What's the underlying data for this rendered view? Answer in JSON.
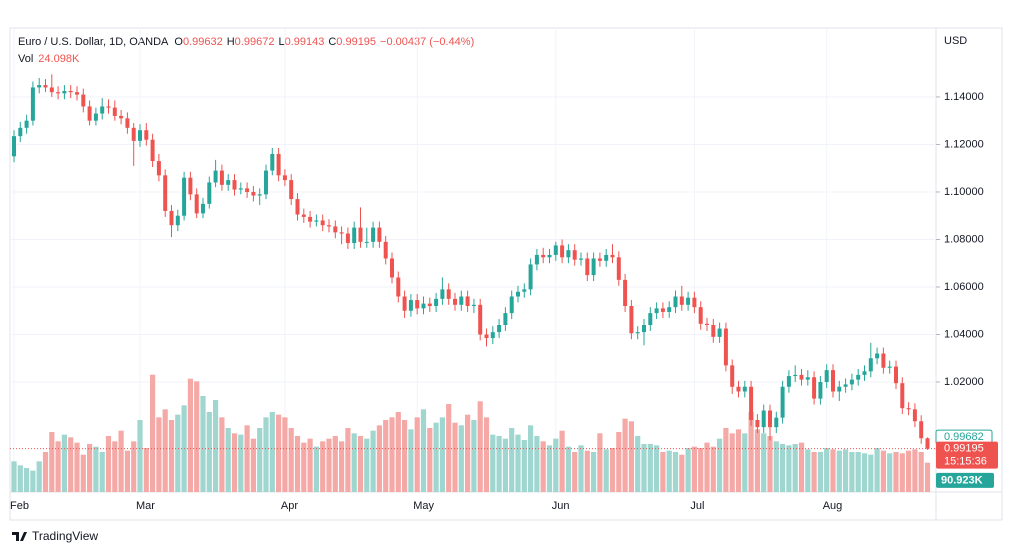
{
  "chart_data": {
    "type": "candlestick",
    "title": "Euro / U.S. Dollar, 1D, OANDA",
    "ohlc_header": [
      {
        "key": "O",
        "value": "0.99632"
      },
      {
        "key": "H",
        "value": "0.99672"
      },
      {
        "key": "L",
        "value": "0.99143"
      },
      {
        "key": "C",
        "value": "0.99195"
      }
    ],
    "change": "−0.00437 (−0.44%)",
    "volume_header": {
      "key": "Vol",
      "value": "24.098K"
    },
    "currency": "USD",
    "countdown": "15:15:36",
    "branding": "TradingView",
    "up_color": "#26a69a",
    "down_color": "#ef5350",
    "volume_up_color": "#9fd6cf",
    "volume_down_color": "#f5a9a7",
    "grid": true,
    "categories": [
      "Feb",
      null,
      null,
      null,
      null,
      null,
      null,
      null,
      null,
      null,
      null,
      null,
      null,
      null,
      null,
      null,
      null,
      null,
      null,
      null,
      "Mar",
      null,
      null,
      null,
      null,
      null,
      null,
      null,
      null,
      null,
      null,
      null,
      null,
      null,
      null,
      null,
      null,
      null,
      null,
      null,
      null,
      null,
      null,
      "Apr",
      null,
      null,
      null,
      null,
      null,
      null,
      null,
      null,
      null,
      null,
      null,
      null,
      null,
      null,
      null,
      null,
      null,
      null,
      null,
      null,
      "May",
      null,
      null,
      null,
      null,
      null,
      null,
      null,
      null,
      null,
      null,
      null,
      null,
      null,
      null,
      null,
      null,
      null,
      null,
      null,
      null,
      null,
      "Jun",
      null,
      null,
      null,
      null,
      null,
      null,
      null,
      null,
      null,
      null,
      null,
      null,
      null,
      null,
      null,
      null,
      null,
      null,
      null,
      null,
      null,
      "Jul",
      null,
      null,
      null,
      null,
      null,
      null,
      null,
      null,
      null,
      null,
      null,
      null,
      null,
      null,
      null,
      null,
      null,
      null,
      null,
      null,
      "Aug",
      null,
      null,
      null,
      null,
      null,
      null,
      null,
      null,
      null,
      null,
      null,
      null,
      null,
      null,
      null,
      null
    ],
    "open": [
      1.115,
      1.1235,
      1.127,
      1.13,
      1.144,
      1.145,
      1.144,
      1.142,
      1.1415,
      1.1425,
      1.142,
      1.141,
      1.136,
      1.13,
      1.133,
      1.136,
      1.1355,
      1.132,
      1.131,
      1.127,
      1.1215,
      1.126,
      1.122,
      1.113,
      1.107,
      1.092,
      1.086,
      1.09,
      1.106,
      1.099,
      1.091,
      1.095,
      1.104,
      1.109,
      1.103,
      1.105,
      1.101,
      1.1015,
      1.1,
      1.0985,
      1.099,
      1.109,
      1.116,
      1.107,
      1.105,
      1.097,
      1.0905,
      1.0895,
      1.0875,
      1.088,
      1.086,
      1.0855,
      1.083,
      1.0825,
      1.0785,
      1.085,
      1.079,
      1.079,
      1.085,
      1.079,
      1.072,
      1.064,
      1.056,
      1.05,
      1.0545,
      1.051,
      1.053,
      1.052,
      1.055,
      1.059,
      1.055,
      1.0525,
      1.056,
      1.052,
      1.0525,
      1.04,
      1.0385,
      1.041,
      1.044,
      1.049,
      1.056,
      1.058,
      1.059,
      1.0695,
      1.0735,
      1.0725,
      1.0735,
      1.0775,
      1.0725,
      1.0755,
      1.0715,
      1.072,
      1.065,
      1.072,
      1.071,
      1.0735,
      1.0725,
      1.063,
      1.052,
      1.0405,
      1.041,
      1.044,
      1.049,
      1.051,
      1.0495,
      1.0515,
      1.056,
      1.0525,
      1.0555,
      1.0515,
      1.0445,
      1.044,
      1.039,
      1.0425,
      1.027,
      1.018,
      1.016,
      1.018,
      1.004,
      1.001,
      1.008,
      1.001,
      1.005,
      1.018,
      1.0225,
      1.023,
      1.021,
      1.022,
      1.013,
      1.02,
      1.025,
      1.016,
      1.018,
      1.019,
      1.021,
      1.023,
      1.0245,
      1.03,
      1.032,
      1.026,
      1.0265,
      1.0195,
      1.009,
      1.0085,
      1.0035,
      0.99632
    ],
    "high": [
      1.126,
      1.1295,
      1.1325,
      1.1465,
      1.148,
      1.1475,
      1.1495,
      1.1445,
      1.145,
      1.145,
      1.1445,
      1.1435,
      1.1385,
      1.1355,
      1.1395,
      1.139,
      1.1385,
      1.1345,
      1.1335,
      1.129,
      1.1285,
      1.129,
      1.1245,
      1.116,
      1.1095,
      1.0945,
      1.0925,
      1.1085,
      1.1085,
      1.1015,
      1.0975,
      1.1065,
      1.1135,
      1.1115,
      1.1075,
      1.1075,
      1.104,
      1.104,
      1.1025,
      1.1015,
      1.1115,
      1.1185,
      1.1185,
      1.1095,
      1.1075,
      1.0995,
      1.093,
      1.092,
      1.0905,
      1.0905,
      1.0885,
      1.088,
      1.0855,
      1.085,
      1.0875,
      1.0935,
      1.085,
      1.0875,
      1.0875,
      1.0815,
      1.0745,
      1.0665,
      1.0585,
      1.057,
      1.057,
      1.056,
      1.0555,
      1.0575,
      1.064,
      1.0615,
      1.0575,
      1.0585,
      1.0585,
      1.055,
      1.055,
      1.0425,
      1.0435,
      1.0465,
      1.0515,
      1.0585,
      1.0605,
      1.0615,
      1.072,
      1.076,
      1.0765,
      1.076,
      1.079,
      1.08,
      1.078,
      1.078,
      1.0745,
      1.0745,
      1.0745,
      1.0745,
      1.076,
      1.078,
      1.075,
      1.0655,
      1.0545,
      1.0435,
      1.0465,
      1.0515,
      1.0535,
      1.0535,
      1.054,
      1.0585,
      1.0605,
      1.058,
      1.058,
      1.054,
      1.047,
      1.0465,
      1.045,
      1.045,
      1.0295,
      1.0205,
      1.0205,
      1.0205,
      1.0065,
      1.0105,
      1.0105,
      1.0075,
      1.0205,
      1.025,
      1.027,
      1.0255,
      1.025,
      1.0245,
      1.0225,
      1.0275,
      1.0275,
      1.0205,
      1.0215,
      1.0235,
      1.0255,
      1.027,
      1.0365,
      1.0345,
      1.0345,
      1.029,
      1.029,
      1.022,
      1.0115,
      1.011,
      1.006,
      0.99672
    ],
    "low": [
      1.1125,
      1.121,
      1.1245,
      1.128,
      1.1415,
      1.142,
      1.14,
      1.139,
      1.139,
      1.1395,
      1.1385,
      1.1335,
      1.128,
      1.128,
      1.1305,
      1.133,
      1.13,
      1.1285,
      1.1245,
      1.111,
      1.119,
      1.1195,
      1.1105,
      1.1045,
      1.0895,
      1.081,
      1.0835,
      1.088,
      1.0965,
      1.089,
      1.089,
      1.093,
      1.102,
      1.1005,
      1.1005,
      1.0985,
      1.099,
      1.0975,
      1.096,
      1.0945,
      1.097,
      1.107,
      1.1045,
      1.1025,
      1.0945,
      1.088,
      1.087,
      1.085,
      1.0855,
      1.0835,
      1.083,
      1.0805,
      1.078,
      1.076,
      1.076,
      1.0765,
      1.0765,
      1.0765,
      1.0765,
      1.0695,
      1.0615,
      1.0535,
      1.047,
      1.0475,
      1.0485,
      1.0485,
      1.0495,
      1.0495,
      1.0525,
      1.0525,
      1.05,
      1.05,
      1.0495,
      1.049,
      1.0375,
      1.035,
      1.036,
      1.0385,
      1.0415,
      1.0465,
      1.0535,
      1.0555,
      1.0565,
      1.067,
      1.07,
      1.07,
      1.071,
      1.07,
      1.07,
      1.069,
      1.069,
      1.0625,
      1.0625,
      1.0685,
      1.0685,
      1.07,
      1.0605,
      1.0495,
      1.038,
      1.038,
      1.0355,
      1.0415,
      1.0465,
      1.047,
      1.047,
      1.049,
      1.05,
      1.05,
      1.049,
      1.042,
      1.0415,
      1.0365,
      1.0365,
      1.0245,
      1.015,
      1.0135,
      1.0135,
      1.0015,
      0.9985,
      0.9985,
      0.9955,
      0.9985,
      1.0025,
      1.0155,
      1.02,
      1.0185,
      1.0185,
      1.0105,
      1.0105,
      1.0175,
      1.0135,
      1.012,
      1.0155,
      1.0165,
      1.0185,
      1.0205,
      1.022,
      1.0275,
      1.0235,
      1.0235,
      1.017,
      1.0065,
      1.006,
      1.001,
      0.994,
      0.99143
    ],
    "close": [
      1.1235,
      1.127,
      1.13,
      1.144,
      1.145,
      1.144,
      1.142,
      1.1415,
      1.1425,
      1.142,
      1.141,
      1.136,
      1.13,
      1.133,
      1.136,
      1.1355,
      1.132,
      1.131,
      1.127,
      1.1215,
      1.126,
      1.122,
      1.113,
      1.107,
      1.092,
      1.086,
      1.09,
      1.106,
      1.099,
      1.091,
      1.095,
      1.104,
      1.109,
      1.103,
      1.105,
      1.101,
      1.1015,
      1.1,
      1.0985,
      1.099,
      1.109,
      1.116,
      1.107,
      1.105,
      1.097,
      1.0905,
      1.0895,
      1.0875,
      1.088,
      1.086,
      1.0855,
      1.083,
      1.0825,
      1.0785,
      1.085,
      1.079,
      1.079,
      1.085,
      1.079,
      1.072,
      1.064,
      1.056,
      1.05,
      1.0545,
      1.051,
      1.053,
      1.052,
      1.055,
      1.059,
      1.055,
      1.0525,
      1.056,
      1.052,
      1.0525,
      1.04,
      1.0385,
      1.041,
      1.044,
      1.049,
      1.056,
      1.058,
      1.059,
      1.0695,
      1.0735,
      1.0725,
      1.0735,
      1.0775,
      1.0725,
      1.0755,
      1.0715,
      1.072,
      1.065,
      1.072,
      1.071,
      1.0735,
      1.0725,
      1.063,
      1.052,
      1.0405,
      1.041,
      1.044,
      1.049,
      1.051,
      1.0495,
      1.0515,
      1.056,
      1.0525,
      1.0555,
      1.0515,
      1.0445,
      1.044,
      1.039,
      1.0425,
      1.027,
      1.018,
      1.016,
      1.018,
      1.004,
      1.001,
      1.008,
      1.001,
      1.005,
      1.018,
      1.0225,
      1.023,
      1.021,
      1.022,
      1.013,
      1.02,
      1.025,
      1.016,
      1.018,
      1.019,
      1.021,
      1.023,
      1.0245,
      1.03,
      1.032,
      1.026,
      1.0265,
      1.0195,
      1.009,
      1.0085,
      1.0035,
      0.99632,
      0.99195
    ],
    "volume": [
      230,
      200,
      180,
      160,
      230,
      300,
      450,
      380,
      430,
      410,
      370,
      280,
      360,
      340,
      300,
      420,
      380,
      460,
      310,
      380,
      540,
      330,
      880,
      560,
      620,
      540,
      580,
      650,
      850,
      830,
      720,
      600,
      690,
      560,
      480,
      440,
      430,
      500,
      400,
      480,
      560,
      600,
      580,
      560,
      480,
      420,
      370,
      400,
      340,
      380,
      400,
      420,
      380,
      480,
      440,
      420,
      400,
      460,
      500,
      540,
      560,
      600,
      540,
      470,
      560,
      620,
      480,
      520,
      560,
      660,
      520,
      500,
      580,
      540,
      680,
      560,
      430,
      420,
      400,
      480,
      430,
      390,
      500,
      420,
      380,
      350,
      400,
      460,
      340,
      300,
      350,
      310,
      300,
      440,
      320,
      330,
      450,
      550,
      530,
      420,
      360,
      360,
      350,
      300,
      310,
      300,
      280,
      330,
      340,
      330,
      370,
      340,
      400,
      480,
      440,
      470,
      440,
      600,
      470,
      440,
      420,
      380,
      360,
      350,
      360,
      370,
      320,
      300,
      300,
      330,
      320,
      310,
      320,
      300,
      300,
      290,
      280,
      330,
      310,
      290,
      300,
      290,
      310,
      320,
      300,
      220
    ],
    "vlim": [
      0,
      1200
    ],
    "ylim": [
      0.9737,
      1.1606
    ],
    "yticks": [
      {
        "value": 1.02,
        "label": "1.02000"
      },
      {
        "value": 1.04,
        "label": "1.04000"
      },
      {
        "value": 1.06,
        "label": "1.06000"
      },
      {
        "value": 1.08,
        "label": "1.08000"
      },
      {
        "value": 1.1,
        "label": "1.10000"
      },
      {
        "value": 1.12,
        "label": "1.12000"
      },
      {
        "value": 1.14,
        "label": "1.14000"
      }
    ],
    "price_markers": [
      {
        "value": 0.99682,
        "label": "0.99682",
        "color": "#26a69a",
        "style": "outline"
      },
      {
        "value": 0.99195,
        "label": "0.99195",
        "color": "#ef5350",
        "style": "solid"
      }
    ],
    "volume_marker": {
      "value": 90.923,
      "label": "90.923K",
      "color": "#26a69a"
    }
  }
}
